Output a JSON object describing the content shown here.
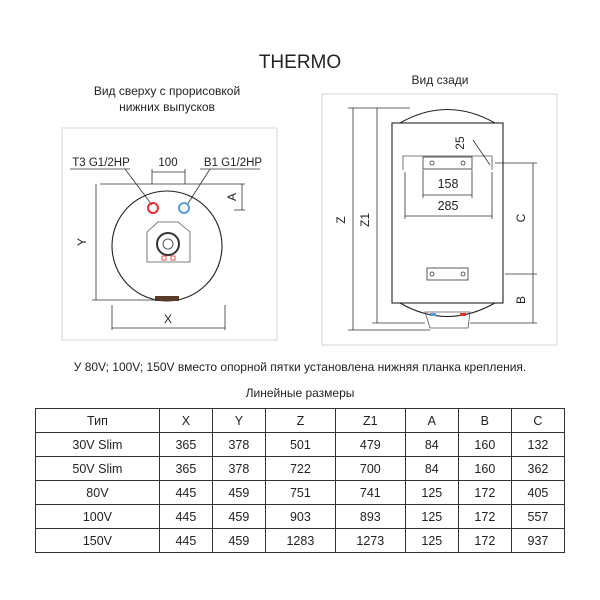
{
  "title": "THERMO",
  "top_view": {
    "caption_line1": "Вид сверху с прорисовкой",
    "caption_line2": "нижних выпусков",
    "label_hot": "Т3 G1/2HP",
    "label_spacing": "100",
    "label_cold": "В1 G1/2HP",
    "dim_a": "A",
    "dim_x": "X",
    "dim_y": "Y",
    "hot_color": "#e03030",
    "cold_color": "#5b9bd5"
  },
  "rear_view": {
    "caption": "Вид сзади",
    "dim_z": "Z",
    "dim_z1": "Z1",
    "dim_25": "25",
    "dim_158": "158",
    "dim_285": "285",
    "dim_c": "C",
    "dim_b": "B"
  },
  "note": "У 80V; 100V; 150V вместо опорной пятки установлена нижняя планка крепления.",
  "table_title": "Линейные размеры",
  "table": {
    "headers": [
      "Тип",
      "X",
      "Y",
      "Z",
      "Z1",
      "A",
      "B",
      "C"
    ],
    "rows": [
      [
        "30V Slim",
        "365",
        "378",
        "501",
        "479",
        "84",
        "160",
        "132"
      ],
      [
        "50V Slim",
        "365",
        "378",
        "722",
        "700",
        "84",
        "160",
        "362"
      ],
      [
        "80V",
        "445",
        "459",
        "751",
        "741",
        "125",
        "172",
        "405"
      ],
      [
        "100V",
        "445",
        "459",
        "903",
        "893",
        "125",
        "172",
        "557"
      ],
      [
        "150V",
        "445",
        "459",
        "1283",
        "1273",
        "125",
        "172",
        "937"
      ]
    ]
  }
}
